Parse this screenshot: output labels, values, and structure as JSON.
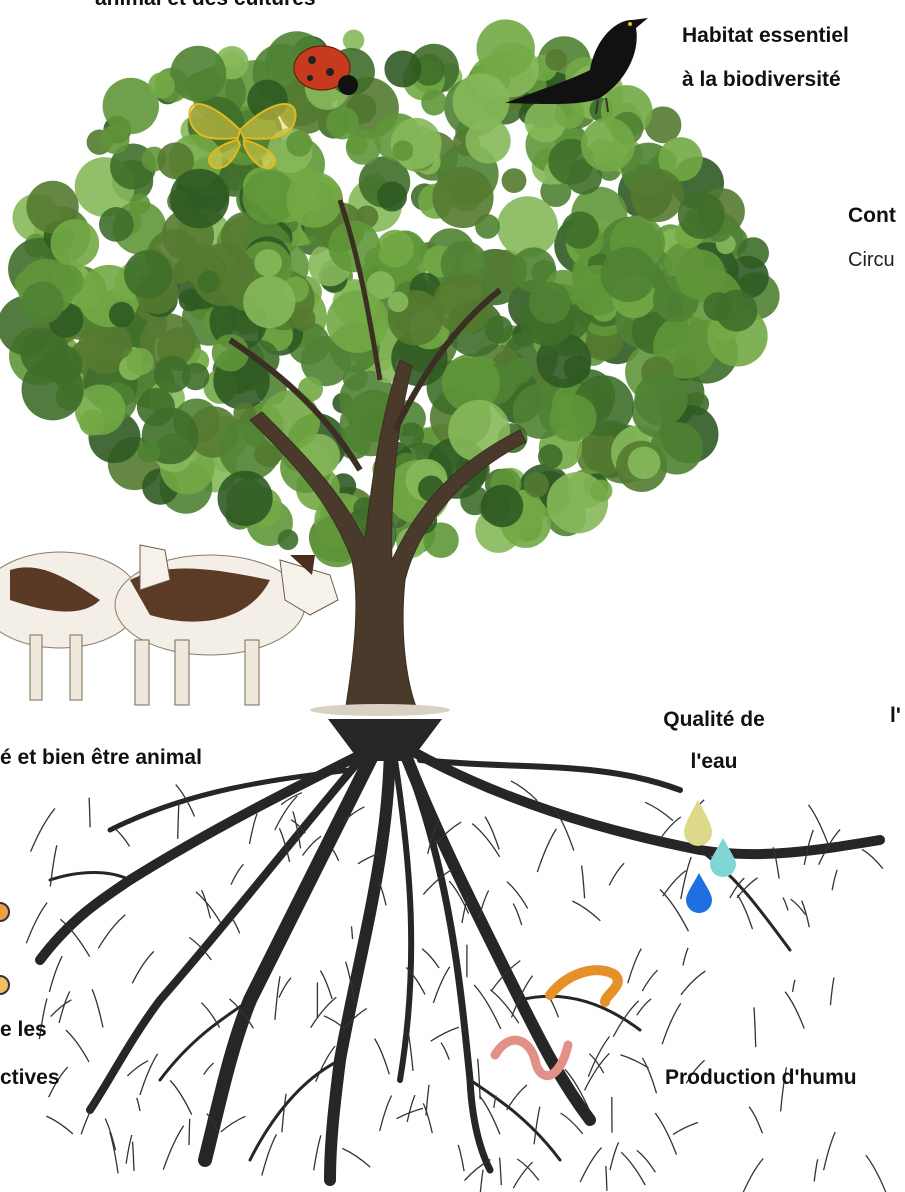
{
  "labels": {
    "top_cut": "animal et des cultures",
    "habitat_line1": "Habitat essentiel",
    "habitat_line2": "à la biodiversité",
    "right_line1": "Cont",
    "right_line2": "Circu",
    "right_mid": "l'",
    "water_line1": "Qualité de",
    "water_line2": "l'eau",
    "animal_welfare": "é et bien être animal",
    "left_line1": "e les",
    "left_line2": "ctives",
    "humus": "Production d'humu"
  }
}
